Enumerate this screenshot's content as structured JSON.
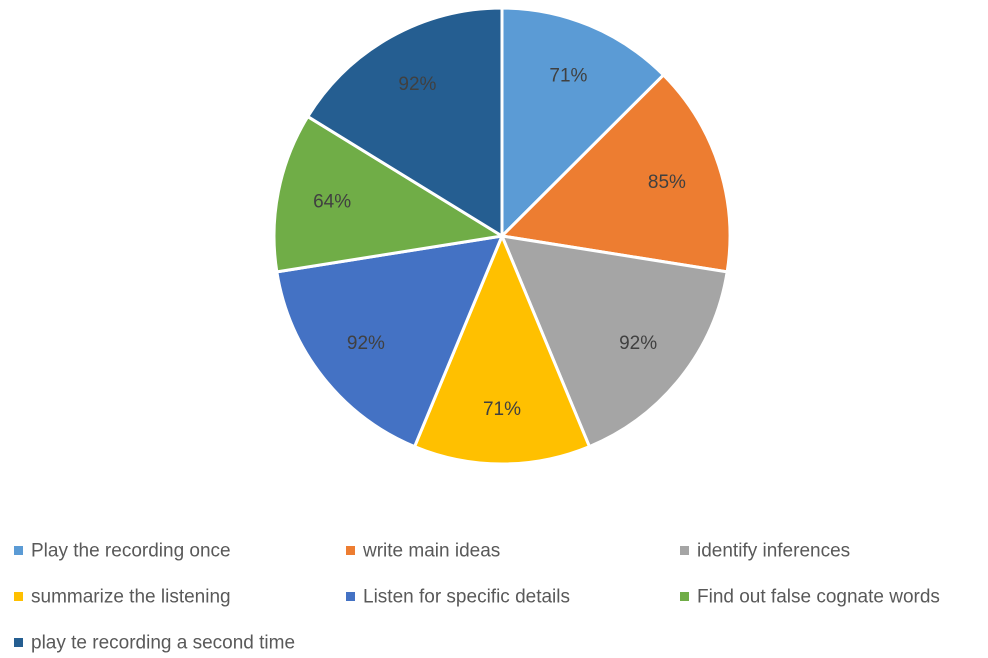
{
  "chart_data": {
    "type": "pie",
    "title": "",
    "categories": [
      "Play the recording once",
      "write main ideas",
      "identify inferences",
      "summarize the listening",
      "Listen for specific details",
      "Find out false cognate words",
      "play te recording a second time"
    ],
    "values": [
      71,
      85,
      92,
      71,
      92,
      64,
      92
    ],
    "labels": [
      "71%",
      "85%",
      "92%",
      "71%",
      "92%",
      "64%",
      "92%"
    ],
    "colors": [
      "#5b9bd5",
      "#ed7d31",
      "#a5a5a5",
      "#ffc000",
      "#4472c4",
      "#70ad47",
      "#255e91"
    ],
    "legend_position": "bottom"
  }
}
